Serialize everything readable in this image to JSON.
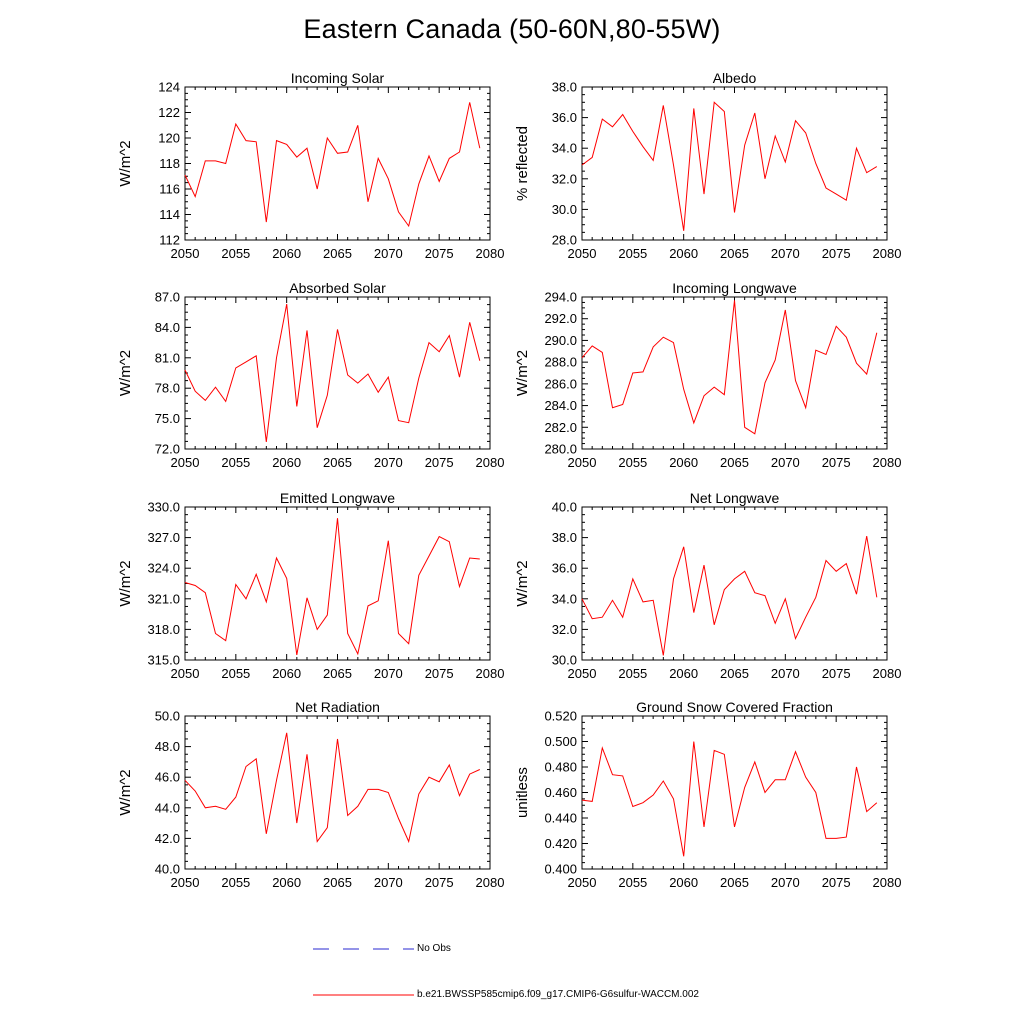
{
  "title": "Eastern Canada (50-60N,80-55W)",
  "legend": {
    "obs_label": "No Obs",
    "obs_color": "#2a2ad0",
    "model_label": "b.e21.BWSSP585cmip6.f09_g17.CMIP6-G6sulfur-WACCM.002",
    "model_color": "#ff0000"
  },
  "chart_data": [
    {
      "type": "line",
      "title": "Incoming Solar",
      "ylabel": "W/m^2",
      "xlim": [
        2050,
        2080
      ],
      "ylim": [
        112,
        124
      ],
      "xticks": [
        2050,
        2055,
        2060,
        2065,
        2070,
        2075,
        2080
      ],
      "yticks": [
        "112",
        "114",
        "116",
        "118",
        "120",
        "122",
        "124"
      ],
      "series": [
        {
          "name": "b.e21.BWSSP585cmip6.f09_g17.CMIP6-G6sulfur-WACCM.002",
          "x": [
            2050,
            2051,
            2052,
            2053,
            2054,
            2055,
            2056,
            2057,
            2058,
            2059,
            2060,
            2061,
            2062,
            2063,
            2064,
            2065,
            2066,
            2067,
            2068,
            2069,
            2070,
            2071,
            2072,
            2073,
            2074,
            2075,
            2076,
            2077,
            2078,
            2079
          ],
          "y": [
            117.1,
            115.4,
            118.2,
            118.2,
            118.0,
            121.1,
            119.8,
            119.7,
            113.4,
            119.8,
            119.5,
            118.5,
            119.2,
            116.0,
            120.0,
            118.8,
            118.9,
            121.0,
            115.0,
            118.4,
            116.8,
            114.2,
            113.1,
            116.4,
            118.6,
            116.6,
            118.4,
            118.9,
            122.8,
            119.2
          ]
        }
      ],
      "grid": false
    },
    {
      "type": "line",
      "title": "Albedo",
      "ylabel": "% reflected",
      "xlim": [
        2050,
        2080
      ],
      "ylim": [
        28,
        38
      ],
      "xticks": [
        2050,
        2055,
        2060,
        2065,
        2070,
        2075,
        2080
      ],
      "yticks": [
        "28.0",
        "30.0",
        "32.0",
        "34.0",
        "36.0",
        "38.0"
      ],
      "series": [
        {
          "name": "b.e21.BWSSP585cmip6.f09_g17.CMIP6-G6sulfur-WACCM.002",
          "x": [
            2050,
            2051,
            2052,
            2053,
            2054,
            2055,
            2056,
            2057,
            2058,
            2059,
            2060,
            2061,
            2062,
            2063,
            2064,
            2065,
            2066,
            2067,
            2068,
            2069,
            2070,
            2071,
            2072,
            2073,
            2074,
            2075,
            2076,
            2077,
            2078,
            2079
          ],
          "y": [
            32.9,
            33.4,
            35.9,
            35.4,
            36.2,
            35.1,
            34.1,
            33.2,
            36.8,
            32.9,
            28.6,
            36.6,
            31.0,
            37.0,
            36.4,
            29.8,
            34.2,
            36.3,
            32.0,
            34.8,
            33.1,
            35.8,
            35.0,
            33.0,
            31.4,
            31.0,
            30.6,
            34.0,
            32.4,
            32.8
          ]
        }
      ],
      "grid": false
    },
    {
      "type": "line",
      "title": "Absorbed Solar",
      "ylabel": "W/m^2",
      "xlim": [
        2050,
        2080
      ],
      "ylim": [
        72,
        87
      ],
      "xticks": [
        2050,
        2055,
        2060,
        2065,
        2070,
        2075,
        2080
      ],
      "yticks": [
        "72.0",
        "75.0",
        "78.0",
        "81.0",
        "84.0",
        "87.0"
      ],
      "series": [
        {
          "name": "b.e21.BWSSP585cmip6.f09_g17.CMIP6-G6sulfur-WACCM.002",
          "x": [
            2050,
            2051,
            2052,
            2053,
            2054,
            2055,
            2056,
            2057,
            2058,
            2059,
            2060,
            2061,
            2062,
            2063,
            2064,
            2065,
            2066,
            2067,
            2068,
            2069,
            2070,
            2071,
            2072,
            2073,
            2074,
            2075,
            2076,
            2077,
            2078,
            2079
          ],
          "y": [
            79.8,
            77.7,
            76.8,
            78.1,
            76.7,
            80.0,
            80.6,
            81.2,
            72.7,
            81.0,
            86.3,
            76.2,
            83.7,
            74.1,
            77.3,
            83.8,
            79.3,
            78.5,
            79.4,
            77.6,
            79.1,
            74.8,
            74.6,
            79.0,
            82.5,
            81.6,
            83.2,
            79.1,
            84.5,
            80.7
          ]
        }
      ],
      "grid": false
    },
    {
      "type": "line",
      "title": "Incoming Longwave",
      "ylabel": "W/m^2",
      "xlim": [
        2050,
        2080
      ],
      "ylim": [
        280,
        294
      ],
      "xticks": [
        2050,
        2055,
        2060,
        2065,
        2070,
        2075,
        2080
      ],
      "yticks": [
        "280.0",
        "282.0",
        "284.0",
        "286.0",
        "288.0",
        "290.0",
        "292.0",
        "294.0"
      ],
      "series": [
        {
          "name": "b.e21.BWSSP585cmip6.f09_g17.CMIP6-G6sulfur-WACCM.002",
          "x": [
            2050,
            2051,
            2052,
            2053,
            2054,
            2055,
            2056,
            2057,
            2058,
            2059,
            2060,
            2061,
            2062,
            2063,
            2064,
            2065,
            2066,
            2067,
            2068,
            2069,
            2070,
            2071,
            2072,
            2073,
            2074,
            2075,
            2076,
            2077,
            2078,
            2079
          ],
          "y": [
            288.4,
            289.5,
            288.9,
            283.8,
            284.1,
            287.0,
            287.1,
            289.4,
            290.3,
            289.8,
            285.5,
            282.4,
            284.9,
            285.7,
            285.0,
            293.7,
            282.0,
            281.4,
            286.1,
            288.2,
            292.8,
            286.3,
            283.8,
            289.1,
            288.7,
            291.3,
            290.3,
            287.9,
            286.9,
            290.7
          ]
        }
      ],
      "grid": false
    },
    {
      "type": "line",
      "title": "Emitted Longwave",
      "ylabel": "W/m^2",
      "xlim": [
        2050,
        2080
      ],
      "ylim": [
        315,
        330
      ],
      "xticks": [
        2050,
        2055,
        2060,
        2065,
        2070,
        2075,
        2080
      ],
      "yticks": [
        "315.0",
        "318.0",
        "321.0",
        "324.0",
        "327.0",
        "330.0"
      ],
      "series": [
        {
          "name": "b.e21.BWSSP585cmip6.f09_g17.CMIP6-G6sulfur-WACCM.002",
          "x": [
            2050,
            2051,
            2052,
            2053,
            2054,
            2055,
            2056,
            2057,
            2058,
            2059,
            2060,
            2061,
            2062,
            2063,
            2064,
            2065,
            2066,
            2067,
            2068,
            2069,
            2070,
            2071,
            2072,
            2073,
            2074,
            2075,
            2076,
            2077,
            2078,
            2079
          ],
          "y": [
            322.6,
            322.3,
            321.6,
            317.6,
            316.9,
            322.4,
            321.0,
            323.4,
            320.7,
            325.0,
            323.0,
            315.5,
            321.1,
            318.0,
            319.4,
            328.9,
            317.6,
            315.6,
            320.3,
            320.8,
            326.7,
            317.6,
            316.6,
            323.3,
            325.2,
            327.1,
            326.6,
            322.2,
            325.0,
            324.9
          ]
        }
      ],
      "grid": false
    },
    {
      "type": "line",
      "title": "Net Longwave",
      "ylabel": "W/m^2",
      "xlim": [
        2050,
        2080
      ],
      "ylim": [
        30,
        40
      ],
      "xticks": [
        2050,
        2055,
        2060,
        2065,
        2070,
        2075,
        2080
      ],
      "yticks": [
        "30.0",
        "32.0",
        "34.0",
        "36.0",
        "38.0",
        "40.0"
      ],
      "series": [
        {
          "name": "b.e21.BWSSP585cmip6.f09_g17.CMIP6-G6sulfur-WACCM.002",
          "x": [
            2050,
            2051,
            2052,
            2053,
            2054,
            2055,
            2056,
            2057,
            2058,
            2059,
            2060,
            2061,
            2062,
            2063,
            2064,
            2065,
            2066,
            2067,
            2068,
            2069,
            2070,
            2071,
            2072,
            2073,
            2074,
            2075,
            2076,
            2077,
            2078,
            2079
          ],
          "y": [
            34.0,
            32.7,
            32.8,
            33.9,
            32.8,
            35.3,
            33.8,
            33.9,
            30.3,
            35.3,
            37.4,
            33.1,
            36.2,
            32.3,
            34.6,
            35.3,
            35.8,
            34.4,
            34.2,
            32.4,
            34.0,
            31.4,
            32.8,
            34.1,
            36.5,
            35.8,
            36.3,
            34.3,
            38.1,
            34.1
          ]
        }
      ],
      "grid": false
    },
    {
      "type": "line",
      "title": "Net Radiation",
      "ylabel": "W/m^2",
      "xlim": [
        2050,
        2080
      ],
      "ylim": [
        40,
        50
      ],
      "xticks": [
        2050,
        2055,
        2060,
        2065,
        2070,
        2075,
        2080
      ],
      "yticks": [
        "40.0",
        "42.0",
        "44.0",
        "46.0",
        "48.0",
        "50.0"
      ],
      "series": [
        {
          "name": "b.e21.BWSSP585cmip6.f09_g17.CMIP6-G6sulfur-WACCM.002",
          "x": [
            2050,
            2051,
            2052,
            2053,
            2054,
            2055,
            2056,
            2057,
            2058,
            2059,
            2060,
            2061,
            2062,
            2063,
            2064,
            2065,
            2066,
            2067,
            2068,
            2069,
            2070,
            2071,
            2072,
            2073,
            2074,
            2075,
            2076,
            2077,
            2078,
            2079
          ],
          "y": [
            45.8,
            45.1,
            44.0,
            44.1,
            43.9,
            44.7,
            46.7,
            47.2,
            42.3,
            45.8,
            48.9,
            43.0,
            47.5,
            41.8,
            42.7,
            48.5,
            43.5,
            44.1,
            45.2,
            45.2,
            45.0,
            43.3,
            41.8,
            44.9,
            46.0,
            45.7,
            46.8,
            44.8,
            46.2,
            46.5
          ]
        }
      ],
      "grid": false
    },
    {
      "type": "line",
      "title": "Ground Snow Covered Fraction",
      "ylabel": "unitless",
      "xlim": [
        2050,
        2080
      ],
      "ylim": [
        0.4,
        0.52
      ],
      "xticks": [
        2050,
        2055,
        2060,
        2065,
        2070,
        2075,
        2080
      ],
      "yticks": [
        "0.400",
        "0.420",
        "0.440",
        "0.460",
        "0.480",
        "0.500",
        "0.520"
      ],
      "series": [
        {
          "name": "b.e21.BWSSP585cmip6.f09_g17.CMIP6-G6sulfur-WACCM.002",
          "x": [
            2050,
            2051,
            2052,
            2053,
            2054,
            2055,
            2056,
            2057,
            2058,
            2059,
            2060,
            2061,
            2062,
            2063,
            2064,
            2065,
            2066,
            2067,
            2068,
            2069,
            2070,
            2071,
            2072,
            2073,
            2074,
            2075,
            2076,
            2077,
            2078,
            2079
          ],
          "y": [
            0.454,
            0.453,
            0.495,
            0.474,
            0.473,
            0.449,
            0.452,
            0.458,
            0.469,
            0.455,
            0.41,
            0.5,
            0.433,
            0.493,
            0.49,
            0.433,
            0.464,
            0.484,
            0.46,
            0.47,
            0.47,
            0.492,
            0.472,
            0.46,
            0.424,
            0.424,
            0.425,
            0.48,
            0.445,
            0.452
          ]
        }
      ],
      "grid": false
    }
  ]
}
